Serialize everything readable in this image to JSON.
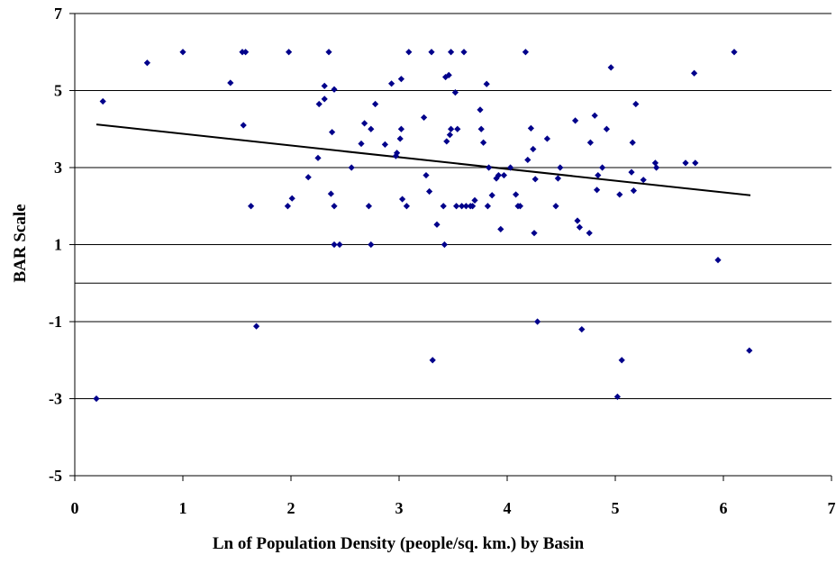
{
  "chart_data": {
    "type": "scatter",
    "title": "",
    "xlabel": "Ln of Population Density (people/sq. km.) by Basin",
    "ylabel": "BAR Scale",
    "xlim": [
      0,
      7
    ],
    "ylim": [
      -5,
      7
    ],
    "xticks": [
      "0",
      "1",
      "2",
      "3",
      "4",
      "5",
      "6",
      "7"
    ],
    "yticks": [
      "-5",
      "-3",
      "-1",
      "1",
      "3",
      "5",
      "7"
    ],
    "grid": "horizontal gridlines at each y tick and at 0",
    "legend": "none",
    "series": [
      {
        "marker_color": "#00008B",
        "points": [
          [
            0.2,
            -3
          ],
          [
            0.26,
            4.72
          ],
          [
            0.67,
            5.72
          ],
          [
            1.0,
            6.0
          ],
          [
            1.44,
            5.2
          ],
          [
            1.55,
            6.0
          ],
          [
            1.58,
            6.0
          ],
          [
            1.56,
            4.1
          ],
          [
            1.63,
            2.0
          ],
          [
            1.68,
            -1.12
          ],
          [
            1.97,
            2.0
          ],
          [
            1.98,
            6.0
          ],
          [
            2.01,
            2.2
          ],
          [
            2.16,
            2.75
          ],
          [
            2.25,
            3.25
          ],
          [
            2.26,
            4.65
          ],
          [
            2.31,
            4.78
          ],
          [
            2.31,
            5.12
          ],
          [
            2.35,
            6.0
          ],
          [
            2.37,
            2.32
          ],
          [
            2.38,
            3.92
          ],
          [
            2.4,
            5.03
          ],
          [
            2.4,
            2.0
          ],
          [
            2.4,
            1.0
          ],
          [
            2.45,
            1.0
          ],
          [
            2.56,
            3.0
          ],
          [
            2.65,
            3.62
          ],
          [
            2.68,
            4.15
          ],
          [
            2.72,
            2.0
          ],
          [
            2.74,
            4.0
          ],
          [
            2.74,
            1.0
          ],
          [
            2.78,
            4.65
          ],
          [
            2.87,
            3.6
          ],
          [
            2.93,
            5.18
          ],
          [
            2.97,
            3.3
          ],
          [
            2.98,
            3.38
          ],
          [
            3.01,
            3.75
          ],
          [
            3.02,
            4.0
          ],
          [
            3.02,
            5.3
          ],
          [
            3.03,
            2.18
          ],
          [
            3.07,
            2.0
          ],
          [
            3.09,
            6.0
          ],
          [
            3.23,
            4.3
          ],
          [
            3.25,
            2.8
          ],
          [
            3.28,
            2.38
          ],
          [
            3.3,
            6.0
          ],
          [
            3.31,
            -2.0
          ],
          [
            3.35,
            1.52
          ],
          [
            3.41,
            2.0
          ],
          [
            3.42,
            1.0
          ],
          [
            3.43,
            5.35
          ],
          [
            3.44,
            3.68
          ],
          [
            3.46,
            5.4
          ],
          [
            3.47,
            3.85
          ],
          [
            3.48,
            6.0
          ],
          [
            3.48,
            4.0
          ],
          [
            3.52,
            4.95
          ],
          [
            3.53,
            2.0
          ],
          [
            3.54,
            4.0
          ],
          [
            3.58,
            2.0
          ],
          [
            3.6,
            6.0
          ],
          [
            3.62,
            2.0
          ],
          [
            3.66,
            2.0
          ],
          [
            3.68,
            2.0
          ],
          [
            3.7,
            2.15
          ],
          [
            3.75,
            4.5
          ],
          [
            3.76,
            4.0
          ],
          [
            3.78,
            3.65
          ],
          [
            3.81,
            5.17
          ],
          [
            3.82,
            2.0
          ],
          [
            3.83,
            3.0
          ],
          [
            3.86,
            2.28
          ],
          [
            3.9,
            2.72
          ],
          [
            3.92,
            2.8
          ],
          [
            3.94,
            1.4
          ],
          [
            3.97,
            2.8
          ],
          [
            4.03,
            3.0
          ],
          [
            4.08,
            2.3
          ],
          [
            4.1,
            2.0
          ],
          [
            4.12,
            2.0
          ],
          [
            4.17,
            6.0
          ],
          [
            4.19,
            3.2
          ],
          [
            4.22,
            4.02
          ],
          [
            4.24,
            3.48
          ],
          [
            4.25,
            1.3
          ],
          [
            4.26,
            2.7
          ],
          [
            4.28,
            -1.0
          ],
          [
            4.37,
            3.75
          ],
          [
            4.45,
            2.0
          ],
          [
            4.47,
            2.72
          ],
          [
            4.49,
            3.0
          ],
          [
            4.63,
            4.22
          ],
          [
            4.65,
            1.62
          ],
          [
            4.67,
            1.45
          ],
          [
            4.69,
            -1.2
          ],
          [
            4.76,
            1.3
          ],
          [
            4.77,
            3.65
          ],
          [
            4.81,
            4.35
          ],
          [
            4.83,
            2.42
          ],
          [
            4.84,
            2.8
          ],
          [
            4.88,
            3.0
          ],
          [
            4.92,
            4.0
          ],
          [
            4.96,
            5.6
          ],
          [
            5.02,
            -2.95
          ],
          [
            5.04,
            2.3
          ],
          [
            5.06,
            -2.0
          ],
          [
            5.15,
            2.88
          ],
          [
            5.16,
            3.65
          ],
          [
            5.17,
            2.4
          ],
          [
            5.19,
            4.65
          ],
          [
            5.26,
            2.68
          ],
          [
            5.37,
            3.12
          ],
          [
            5.38,
            3.0
          ],
          [
            5.65,
            3.12
          ],
          [
            5.73,
            5.45
          ],
          [
            5.74,
            3.12
          ],
          [
            5.95,
            0.6
          ],
          [
            6.1,
            6.0
          ],
          [
            6.24,
            -1.75
          ]
        ]
      }
    ],
    "trendline": {
      "type": "linear",
      "x": [
        0.2,
        6.25
      ],
      "y": [
        4.12,
        2.28
      ]
    }
  }
}
